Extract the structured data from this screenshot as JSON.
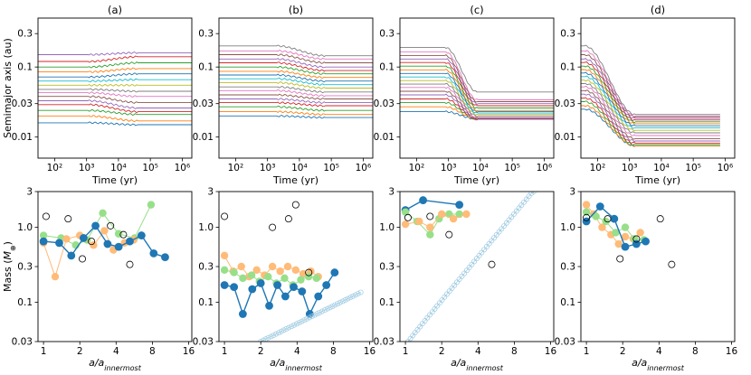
{
  "colors": {
    "blue": "#1f77b4",
    "orange": "#ff7f0e",
    "green": "#2ca02c",
    "red": "#d62728",
    "purple": "#9467bd",
    "brown": "#8c564b",
    "pink": "#e377c2",
    "gray": "#7f7f7f",
    "olive": "#bcbd22",
    "cyan": "#17becf",
    "light_orange": "#ffbb78",
    "light_green": "#98df8a",
    "light_blue": "#9ecae1"
  },
  "chart_data": [
    {
      "type": "line",
      "panel": "(a)",
      "title": "(a)",
      "xlabel": "Time (yr)",
      "ylabel": "Semimajor axis (au)",
      "x_scale": "log",
      "y_scale": "log",
      "xlim": [
        30,
        2000000
      ],
      "ylim": [
        0.005,
        0.5
      ],
      "xticks": [
        "10²",
        "10³",
        "10⁴",
        "10⁵",
        "10⁶"
      ],
      "yticks": [
        "0.01",
        "0.03",
        "0.1",
        "0.3"
      ],
      "t_end": 2000000,
      "t_trans": [
        1200,
        40000
      ],
      "a_start": [
        0.016,
        0.02,
        0.024,
        0.029,
        0.033,
        0.038,
        0.043,
        0.048,
        0.055,
        0.063,
        0.072,
        0.085,
        0.1,
        0.12,
        0.15
      ],
      "a_end": [
        0.015,
        0.017,
        0.021,
        0.023,
        0.026,
        0.031,
        0.038,
        0.045,
        0.055,
        0.066,
        0.08,
        0.095,
        0.115,
        0.14,
        0.16
      ]
    },
    {
      "type": "line",
      "panel": "(b)",
      "title": "(b)",
      "xlabel": "Time (yr)",
      "ylabel": "",
      "x_scale": "log",
      "y_scale": "log",
      "xlim": [
        30,
        2000000
      ],
      "ylim": [
        0.005,
        0.5
      ],
      "xticks": [
        "10²",
        "10³",
        "10⁴",
        "10⁵",
        "10⁶"
      ],
      "yticks": [
        "0.01",
        "0.03",
        "0.1",
        "0.3"
      ],
      "t_end": 2000000,
      "t_trans": [
        2000,
        60000
      ],
      "a_start": [
        0.02,
        0.023,
        0.027,
        0.031,
        0.035,
        0.04,
        0.046,
        0.052,
        0.06,
        0.068,
        0.077,
        0.087,
        0.1,
        0.115,
        0.13,
        0.15,
        0.17,
        0.2
      ],
      "a_end": [
        0.019,
        0.021,
        0.024,
        0.028,
        0.031,
        0.035,
        0.039,
        0.044,
        0.05,
        0.056,
        0.063,
        0.071,
        0.08,
        0.089,
        0.1,
        0.115,
        0.13,
        0.145
      ]
    },
    {
      "type": "line",
      "panel": "(c)",
      "title": "(c)",
      "xlabel": "Time (yr)",
      "ylabel": "",
      "x_scale": "log",
      "y_scale": "log",
      "xlim": [
        30,
        2000000
      ],
      "ylim": [
        0.005,
        0.5
      ],
      "xticks": [
        "10²",
        "10³",
        "10⁴",
        "10⁵",
        "10⁶"
      ],
      "yticks": [
        "0.01",
        "0.03",
        "0.1",
        "0.3"
      ],
      "t_end": 2000000,
      "t_trans": [
        800,
        8000
      ],
      "a_start": [
        0.023,
        0.027,
        0.031,
        0.035,
        0.04,
        0.045,
        0.051,
        0.057,
        0.064,
        0.072,
        0.081,
        0.091,
        0.103,
        0.116,
        0.13,
        0.146,
        0.165,
        0.19
      ],
      "a_end": [
        0.018,
        0.018,
        0.018,
        0.018,
        0.018,
        0.0185,
        0.019,
        0.02,
        0.021,
        0.022,
        0.023,
        0.024,
        0.026,
        0.028,
        0.03,
        0.032,
        0.034,
        0.044
      ]
    },
    {
      "type": "line",
      "panel": "(d)",
      "title": "(d)",
      "xlabel": "Time (yr)",
      "ylabel": "",
      "x_scale": "log",
      "y_scale": "log",
      "xlim": [
        30,
        2000000
      ],
      "ylim": [
        0.005,
        0.5
      ],
      "xticks": [
        "10²",
        "10³",
        "10⁴",
        "10⁵",
        "10⁶"
      ],
      "yticks": [
        "0.01",
        "0.03",
        "0.1",
        "0.3"
      ],
      "t_end": 700000,
      "t_trans": [
        40,
        1500
      ],
      "a_start": [
        0.025,
        0.028,
        0.032,
        0.036,
        0.041,
        0.046,
        0.052,
        0.058,
        0.065,
        0.073,
        0.082,
        0.092,
        0.103,
        0.116,
        0.13,
        0.15,
        0.17,
        0.2
      ],
      "a_end": [
        0.0075,
        0.0075,
        0.0078,
        0.0082,
        0.0088,
        0.0095,
        0.0105,
        0.0115,
        0.0125,
        0.0135,
        0.0145,
        0.0155,
        0.0165,
        0.0175,
        0.0185,
        0.0195,
        0.02,
        0.021
      ]
    },
    {
      "type": "scatter",
      "panel": "(a) bottom",
      "xlabel": "a/a_innermost",
      "ylabel": "Mass (M⊕)",
      "x_scale": "log",
      "y_scale": "log",
      "xlim": [
        0.9,
        17
      ],
      "ylim": [
        0.03,
        3
      ],
      "xticks": [
        "1",
        "2",
        "4",
        "8",
        "16"
      ],
      "yticks": [
        "0.03",
        "0.1",
        "0.3",
        "1.0",
        "3"
      ],
      "series": [
        {
          "color": "green",
          "style": "filled",
          "x": [
            1.0,
            1.4,
            1.85,
            2.3,
            3.1,
            4.2,
            5.7,
            7.8
          ],
          "y": [
            0.78,
            0.72,
            0.58,
            0.68,
            1.55,
            0.82,
            0.72,
            2.0
          ]
        },
        {
          "color": "orange",
          "style": "filled",
          "x": [
            1.0,
            1.25,
            1.55,
            2.0,
            2.6,
            3.2,
            3.8,
            4.7,
            5.6
          ],
          "y": [
            0.62,
            0.22,
            0.7,
            0.78,
            0.58,
            0.9,
            0.5,
            0.62,
            0.68
          ]
        },
        {
          "color": "blue",
          "style": "filled",
          "x": [
            1.0,
            1.35,
            1.7,
            2.15,
            2.7,
            3.4,
            4.2,
            5.2,
            6.5,
            8.2,
            10.2
          ],
          "y": [
            0.65,
            0.62,
            0.42,
            0.72,
            1.05,
            0.6,
            0.55,
            0.65,
            0.78,
            0.45,
            0.4
          ]
        },
        {
          "color": "black",
          "style": "open",
          "x": [
            1.05,
            1.6,
            2.1,
            2.5,
            3.6,
            5.2,
            4.6
          ],
          "y": [
            1.4,
            1.3,
            0.38,
            0.65,
            1.05,
            0.32,
            0.8
          ]
        }
      ]
    },
    {
      "type": "scatter",
      "panel": "(b) bottom",
      "xlabel": "a/a_innermost",
      "ylabel": "",
      "x_scale": "log",
      "y_scale": "log",
      "xlim": [
        0.9,
        17
      ],
      "ylim": [
        0.03,
        3
      ],
      "xticks": [
        "1",
        "2",
        "4",
        "8",
        "16"
      ],
      "yticks": [
        "0.03",
        "0.1",
        "0.3",
        "1.0",
        "3"
      ],
      "series": [
        {
          "color": "orange",
          "style": "filled",
          "x": [
            1.0,
            1.18,
            1.38,
            1.6,
            1.85,
            2.15,
            2.5,
            2.9,
            3.35,
            3.9,
            4.5,
            5.2,
            6.0
          ],
          "y": [
            0.42,
            0.26,
            0.3,
            0.22,
            0.27,
            0.23,
            0.3,
            0.26,
            0.3,
            0.27,
            0.24,
            0.26,
            0.22
          ]
        },
        {
          "color": "green",
          "style": "filled",
          "x": [
            1.0,
            1.2,
            1.42,
            1.68,
            1.95,
            2.3,
            2.7,
            3.15,
            3.7,
            4.3,
            5.0,
            5.8
          ],
          "y": [
            0.27,
            0.25,
            0.21,
            0.23,
            0.19,
            0.22,
            0.18,
            0.21,
            0.17,
            0.2,
            0.22,
            0.21
          ]
        },
        {
          "color": "blue",
          "style": "filled",
          "x": [
            1.0,
            1.2,
            1.42,
            1.7,
            2.0,
            2.35,
            2.75,
            3.2,
            3.75,
            4.4,
            5.1,
            6.0,
            7.0,
            8.2
          ],
          "y": [
            0.17,
            0.16,
            0.07,
            0.15,
            0.18,
            0.09,
            0.17,
            0.12,
            0.16,
            0.14,
            0.07,
            0.12,
            0.17,
            0.25
          ]
        },
        {
          "color": "light_blue",
          "style": "open_small",
          "x": [
            2.0,
            2.1,
            2.2,
            2.31,
            2.43,
            2.55,
            2.68,
            2.82,
            2.96,
            3.1,
            3.26,
            3.42,
            3.6,
            3.78,
            3.97,
            4.17,
            4.38,
            4.6,
            4.83,
            5.07,
            5.32,
            5.59,
            5.87,
            6.16,
            6.47,
            6.8,
            7.14,
            7.5,
            7.87,
            8.26,
            8.68,
            9.11,
            9.57,
            10.05,
            10.55,
            11.08,
            11.63,
            12.21,
            12.82,
            13.5
          ],
          "y": [
            0.03,
            0.0312,
            0.0324,
            0.0337,
            0.035,
            0.0364,
            0.0379,
            0.0394,
            0.041,
            0.0426,
            0.0443,
            0.046,
            0.0478,
            0.0497,
            0.0517,
            0.0537,
            0.0558,
            0.058,
            0.0603,
            0.0627,
            0.0651,
            0.0677,
            0.0704,
            0.0731,
            0.076,
            0.079,
            0.0821,
            0.0853,
            0.0887,
            0.0922,
            0.0958,
            0.0996,
            0.1035,
            0.1075,
            0.1118,
            0.1162,
            0.1207,
            0.1255,
            0.1304,
            0.136
          ]
        },
        {
          "color": "black",
          "style": "open",
          "x": [
            1.0,
            2.5,
            3.4,
            3.9,
            5.0
          ],
          "y": [
            1.4,
            1.0,
            1.3,
            2.0,
            0.25
          ]
        }
      ]
    },
    {
      "type": "scatter",
      "panel": "(c) bottom",
      "xlabel": "a/a_innermost",
      "ylabel": "",
      "x_scale": "log",
      "y_scale": "log",
      "xlim": [
        0.9,
        17
      ],
      "ylim": [
        0.03,
        3
      ],
      "xticks": [
        "1",
        "2",
        "4",
        "8",
        "16"
      ],
      "yticks": [
        "0.03",
        "0.1",
        "0.3",
        "1.0",
        "3"
      ],
      "series": [
        {
          "color": "blue",
          "style": "filled",
          "x": [
            1.0,
            1.4,
            2.8
          ],
          "y": [
            1.7,
            2.3,
            2.0
          ]
        },
        {
          "color": "green",
          "style": "filled",
          "x": [
            1.0,
            1.25,
            1.6,
            1.9,
            2.3,
            2.8
          ],
          "y": [
            1.6,
            1.2,
            0.8,
            1.3,
            1.5,
            1.5
          ]
        },
        {
          "color": "orange",
          "style": "filled",
          "x": [
            1.0,
            1.3,
            1.6,
            2.0,
            2.5,
            3.2
          ],
          "y": [
            1.1,
            1.2,
            1.0,
            1.5,
            1.3,
            1.5
          ]
        },
        {
          "color": "light_blue",
          "style": "open_small",
          "x": [
            1.05,
            1.1,
            1.15,
            1.2,
            1.26,
            1.32,
            1.38,
            1.45,
            1.52,
            1.59,
            1.67,
            1.75,
            1.83,
            1.92,
            2.01,
            2.11,
            2.21,
            2.32,
            2.43,
            2.55,
            2.67,
            2.8,
            2.94,
            3.08,
            3.23,
            3.39,
            3.55,
            3.72,
            3.9,
            4.09,
            4.29,
            4.5,
            4.72,
            4.95,
            5.19,
            5.44,
            5.7,
            5.98,
            6.27,
            6.58,
            6.9,
            7.23,
            7.58,
            7.95,
            8.34,
            8.74,
            9.17,
            9.61,
            10.08,
            10.57,
            11.1,
            11.6
          ],
          "y": [
            0.03,
            0.0329,
            0.036,
            0.0394,
            0.0432,
            0.0473,
            0.0518,
            0.0568,
            0.0622,
            0.0681,
            0.0746,
            0.0817,
            0.0895,
            0.098,
            0.1074,
            0.1176,
            0.1288,
            0.1411,
            0.1545,
            0.1693,
            0.1854,
            0.2031,
            0.2224,
            0.2436,
            0.2668,
            0.2922,
            0.32,
            0.3505,
            0.3839,
            0.4205,
            0.4605,
            0.5044,
            0.5525,
            0.6051,
            0.6628,
            0.7259,
            0.795,
            0.8708,
            0.9537,
            1.0446,
            1.1441,
            1.2531,
            1.3725,
            1.5033,
            1.6465,
            1.8034,
            1.9752,
            2.1633,
            2.3694,
            2.5951,
            2.8425,
            3.0
          ]
        },
        {
          "color": "black",
          "style": "open",
          "x": [
            1.05,
            1.6,
            2.3,
            5.2
          ],
          "y": [
            1.35,
            1.4,
            0.8,
            0.32
          ]
        }
      ]
    },
    {
      "type": "scatter",
      "panel": "(d) bottom",
      "xlabel": "a/a_innermost",
      "ylabel": "",
      "x_scale": "log",
      "y_scale": "log",
      "xlim": [
        0.9,
        17
      ],
      "ylim": [
        0.03,
        3
      ],
      "xticks": [
        "1",
        "2",
        "4",
        "8",
        "16"
      ],
      "yticks": [
        "0.03",
        "0.1",
        "0.3",
        "1.0",
        "3"
      ],
      "series": [
        {
          "color": "orange",
          "style": "filled",
          "x": [
            1.0,
            1.15,
            1.35,
            1.6,
            1.85,
            2.1,
            2.45,
            2.8
          ],
          "y": [
            2.0,
            1.5,
            1.0,
            0.8,
            0.6,
            0.75,
            0.7,
            0.85
          ]
        },
        {
          "color": "green",
          "style": "filled",
          "x": [
            1.0,
            1.2,
            1.45,
            1.75,
            2.1,
            2.5,
            3.0
          ],
          "y": [
            1.6,
            1.4,
            1.2,
            0.85,
            1.0,
            0.7,
            0.68
          ]
        },
        {
          "color": "blue",
          "style": "filled",
          "x": [
            1.0,
            1.3,
            1.7,
            2.1,
            2.6,
            3.1
          ],
          "y": [
            1.2,
            1.9,
            1.3,
            0.55,
            0.6,
            0.65
          ]
        },
        {
          "color": "black",
          "style": "open",
          "x": [
            1.0,
            1.5,
            1.9,
            2.6,
            4.1,
            5.1
          ],
          "y": [
            1.35,
            1.3,
            0.38,
            0.7,
            1.3,
            0.32
          ]
        }
      ]
    }
  ]
}
